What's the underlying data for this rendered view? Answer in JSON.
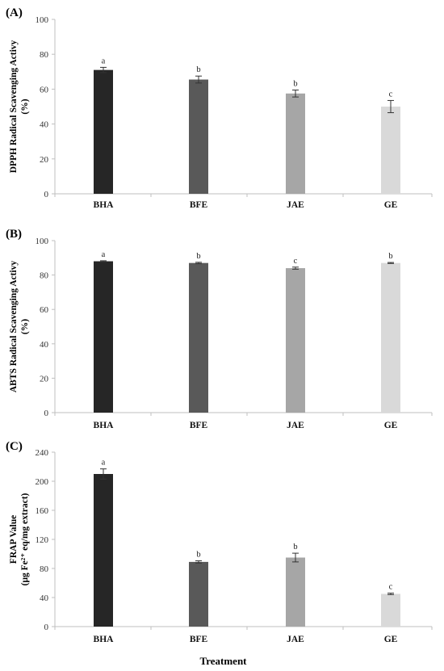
{
  "chart_data": [
    {
      "type": "bar",
      "panel": "(A)",
      "categories": [
        "BHA",
        "BFE",
        "JAE",
        "GE"
      ],
      "values": [
        71,
        65.5,
        57.5,
        50
      ],
      "errors": [
        1.5,
        2,
        2,
        3.5
      ],
      "significance": [
        "a",
        "b",
        "b",
        "c"
      ],
      "colors": [
        "#262626",
        "#595959",
        "#a6a6a6",
        "#d9d9d9"
      ],
      "ylabel_lines": [
        "DPPH Radical Scavenging Activy",
        "(%)"
      ],
      "ylim": [
        0,
        100
      ],
      "yticks": [
        0,
        20,
        40,
        60,
        80,
        100
      ],
      "xlabel": ""
    },
    {
      "type": "bar",
      "panel": "(B)",
      "categories": [
        "BHA",
        "BFE",
        "JAE",
        "GE"
      ],
      "values": [
        88,
        87,
        84,
        87
      ],
      "errors": [
        0.3,
        0.4,
        0.6,
        0.3
      ],
      "significance": [
        "a",
        "b",
        "c",
        "b"
      ],
      "colors": [
        "#262626",
        "#595959",
        "#a6a6a6",
        "#d9d9d9"
      ],
      "ylabel_lines": [
        "ABTS Radical Scavenging Activy",
        "(%)"
      ],
      "ylim": [
        0,
        100
      ],
      "yticks": [
        0,
        20,
        40,
        60,
        80,
        100
      ],
      "xlabel": ""
    },
    {
      "type": "bar",
      "panel": "(C)",
      "categories": [
        "BHA",
        "BFE",
        "JAE",
        "GE"
      ],
      "values": [
        210,
        89,
        95,
        45
      ],
      "errors": [
        7,
        1.5,
        6,
        1
      ],
      "significance": [
        "a",
        "b",
        "b",
        "c"
      ],
      "colors": [
        "#262626",
        "#595959",
        "#a6a6a6",
        "#d9d9d9"
      ],
      "ylabel_lines": [
        "FRAP Value",
        "(μg Fe²⁺ eq/mg extract)"
      ],
      "ylim": [
        0,
        240
      ],
      "yticks": [
        0,
        40,
        80,
        120,
        160,
        200,
        240
      ],
      "xlabel": "Treatment"
    }
  ]
}
